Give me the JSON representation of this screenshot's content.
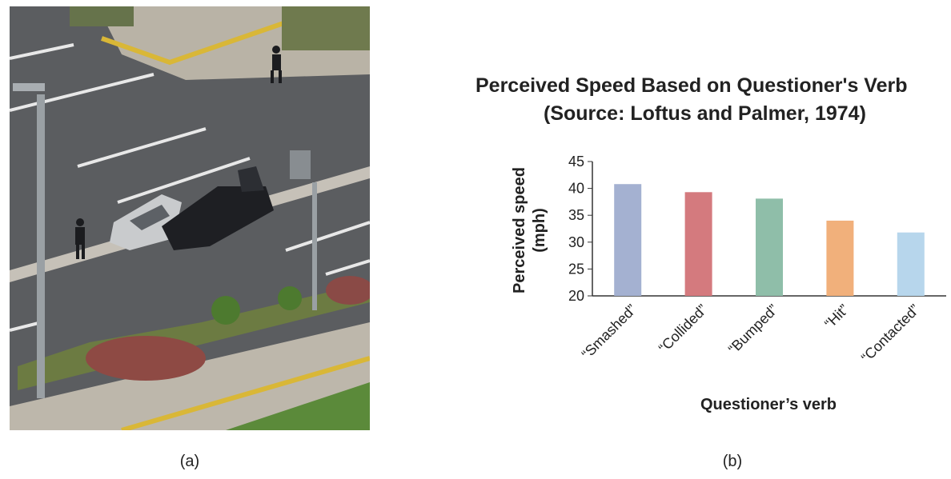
{
  "captions": {
    "a": "(a)",
    "b": "(b)"
  },
  "chart_data": {
    "type": "bar",
    "title": "Perceived Speed Based on Questioner's Verb",
    "subtitle": "(Source: Loftus and Palmer, 1974)",
    "xlabel": "Questioner’s verb",
    "ylabel_lines": [
      "Perceived speed",
      "(mph)"
    ],
    "ylim": [
      20,
      45
    ],
    "yticks": [
      "20",
      "25",
      "30",
      "35",
      "40",
      "45"
    ],
    "categories": [
      "“Smashed”",
      "“Collided”",
      "“Bumped”",
      "“Hit”",
      "“Contacted”"
    ],
    "values": [
      40.8,
      39.3,
      38.1,
      34.0,
      31.8
    ],
    "colors": [
      "#a4b1d1",
      "#d47a7e",
      "#8fbea9",
      "#f1b07b",
      "#b7d6ec"
    ],
    "grid": false,
    "legend": "none"
  }
}
